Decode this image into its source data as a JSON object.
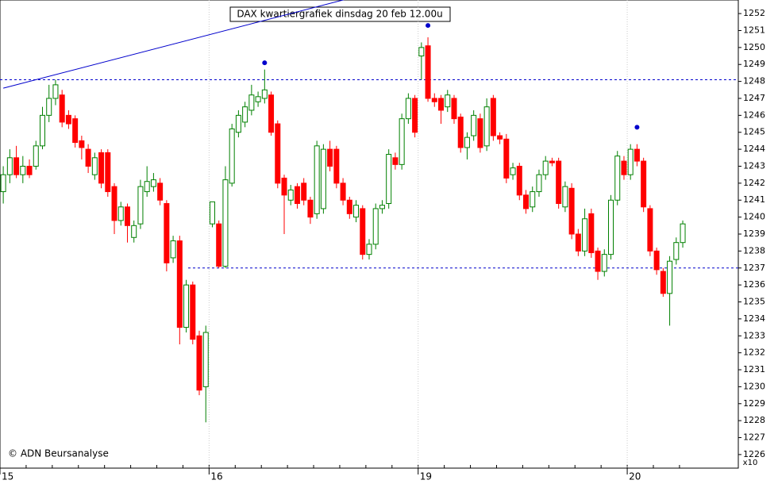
{
  "chart_data": {
    "type": "candlestick",
    "title": "DAX kwartiergrafiek dinsdag 20 feb 12.00u",
    "source": "© ADN Beursanalyse",
    "y_multiplier": "x10",
    "up_color": "#008000",
    "down_color": "#ff0000",
    "accent_color": "#0000cc",
    "ylim": [
      1225.2,
      1252.8
    ],
    "yticks": [
      1226,
      1227,
      1228,
      1229,
      1230,
      1231,
      1232,
      1233,
      1234,
      1235,
      1236,
      1237,
      1238,
      1239,
      1240,
      1241,
      1242,
      1243,
      1244,
      1245,
      1246,
      1247,
      1248,
      1249,
      1250,
      1251,
      1252
    ],
    "categories": [
      "15",
      null,
      null,
      null,
      null,
      null,
      null,
      null,
      null,
      null,
      null,
      null,
      null,
      null,
      null,
      null,
      null,
      null,
      null,
      null,
      null,
      null,
      null,
      null,
      null,
      null,
      null,
      null,
      null,
      null,
      null,
      null,
      "16",
      null,
      null,
      null,
      null,
      null,
      null,
      null,
      null,
      null,
      null,
      null,
      null,
      null,
      null,
      null,
      null,
      null,
      null,
      null,
      null,
      null,
      null,
      null,
      null,
      null,
      null,
      null,
      null,
      null,
      null,
      null,
      "19",
      null,
      null,
      null,
      null,
      null,
      null,
      null,
      null,
      null,
      null,
      null,
      null,
      null,
      null,
      null,
      null,
      null,
      null,
      null,
      null,
      null,
      null,
      null,
      null,
      null,
      null,
      null,
      null,
      null,
      null,
      null,
      "20",
      null,
      null,
      null,
      null,
      null,
      null,
      null,
      null
    ],
    "candles": [
      [
        1241.5,
        1243,
        1240.8,
        1242.5
      ],
      [
        1242.5,
        1244,
        1242,
        1243.5
      ],
      [
        1243.5,
        1244.2,
        1242.3,
        1242.5
      ],
      [
        1242.5,
        1243.6,
        1242,
        1243
      ],
      [
        1243,
        1243.4,
        1242.3,
        1242.5
      ],
      [
        1243,
        1244.5,
        1242.8,
        1244.2
      ],
      [
        1244.2,
        1246.5,
        1244,
        1246
      ],
      [
        1246,
        1247.8,
        1245.6,
        1247
      ],
      [
        1247,
        1248.1,
        1246.6,
        1247.8
      ],
      [
        1247.2,
        1247.5,
        1245.3,
        1245.6
      ],
      [
        1246,
        1246.3,
        1245.2,
        1245.5
      ],
      [
        1245.8,
        1246,
        1244.1,
        1244.4
      ],
      [
        1244.5,
        1244.8,
        1243.4,
        1244.1
      ],
      [
        1244,
        1244.3,
        1242.6,
        1243
      ],
      [
        1242.5,
        1243.8,
        1242.2,
        1243.5
      ],
      [
        1243.8,
        1244,
        1241.7,
        1242
      ],
      [
        1243.8,
        1244,
        1241.2,
        1241.5
      ],
      [
        1241.8,
        1242,
        1239,
        1239.8
      ],
      [
        1239.8,
        1240.9,
        1239.5,
        1240.6
      ],
      [
        1240.6,
        1240.8,
        1238.5,
        1239.5
      ],
      [
        1238.8,
        1239.8,
        1238.5,
        1239.5
      ],
      [
        1239.6,
        1242.2,
        1239.3,
        1241.8
      ],
      [
        1241.5,
        1243,
        1241.2,
        1242.1
      ],
      [
        1241.8,
        1242.6,
        1241.5,
        1242.2
      ],
      [
        1242,
        1242.3,
        1240.7,
        1241
      ],
      [
        1240.8,
        1241,
        1236.8,
        1237.3
      ],
      [
        1237.6,
        1238.9,
        1237.3,
        1238.6
      ],
      [
        1238.6,
        1238.9,
        1232.5,
        1233.5
      ],
      [
        1233.5,
        1236.3,
        1233.2,
        1236
      ],
      [
        1236,
        1236.2,
        1232.5,
        1232.8
      ],
      [
        1233,
        1233.3,
        1229.5,
        1229.8
      ],
      [
        1230,
        1233.6,
        1227.9,
        1233.2
      ],
      [
        1239.6,
        1240.9,
        1239.4,
        1240.9
      ],
      [
        1239.6,
        1239.8,
        1237,
        1237.1
      ],
      [
        1237.1,
        1243,
        1237,
        1242.2
      ],
      [
        1242,
        1245.5,
        1241.8,
        1245.2
      ],
      [
        1245,
        1246.3,
        1244.7,
        1246
      ],
      [
        1245.6,
        1246.8,
        1245.3,
        1246.5
      ],
      [
        1246.3,
        1247.8,
        1246,
        1247.2
      ],
      [
        1246.8,
        1247.4,
        1246.5,
        1247.1
      ],
      [
        1247,
        1248.7,
        1246.7,
        1247.5
      ],
      [
        1247.2,
        1247.4,
        1244.8,
        1245
      ],
      [
        1245.5,
        1245.7,
        1241.7,
        1242
      ],
      [
        1242.3,
        1242.5,
        1239,
        1241.3
      ],
      [
        1241,
        1241.9,
        1240.7,
        1241.6
      ],
      [
        1241.8,
        1242,
        1240.5,
        1240.8
      ],
      [
        1242,
        1242.3,
        1240.7,
        1241
      ],
      [
        1241,
        1241.2,
        1239.6,
        1240
      ],
      [
        1240.2,
        1244.5,
        1239.9,
        1244.2
      ],
      [
        1240.5,
        1244.3,
        1240.2,
        1244
      ],
      [
        1244,
        1244.5,
        1242.7,
        1243
      ],
      [
        1244,
        1244.2,
        1241.7,
        1242
      ],
      [
        1242,
        1242.3,
        1240.7,
        1241
      ],
      [
        1241,
        1241.2,
        1239.9,
        1240.2
      ],
      [
        1240,
        1241,
        1239.7,
        1240.7
      ],
      [
        1240.5,
        1240.7,
        1237.5,
        1237.8
      ],
      [
        1237.8,
        1238.7,
        1237.5,
        1238.4
      ],
      [
        1238.4,
        1240.8,
        1238.1,
        1240.5
      ],
      [
        1240.5,
        1241,
        1240.2,
        1240.7
      ],
      [
        1240.8,
        1244,
        1240.5,
        1243.7
      ],
      [
        1243.5,
        1243.8,
        1242.8,
        1243.1
      ],
      [
        1243.1,
        1246.1,
        1242.8,
        1245.8
      ],
      [
        1245.8,
        1247.3,
        1245.5,
        1247
      ],
      [
        1247,
        1247.2,
        1244.7,
        1245
      ],
      [
        1249.5,
        1250.3,
        1248.1,
        1250
      ],
      [
        1250.1,
        1250.6,
        1246.8,
        1247
      ],
      [
        1247,
        1247.3,
        1246.5,
        1246.8
      ],
      [
        1247,
        1247.2,
        1245.5,
        1246.3
      ],
      [
        1246.5,
        1247.5,
        1246.2,
        1247.2
      ],
      [
        1247,
        1247.2,
        1245.5,
        1245.8
      ],
      [
        1245.9,
        1246.1,
        1243.8,
        1244.1
      ],
      [
        1244.1,
        1245,
        1243.4,
        1244.7
      ],
      [
        1244.8,
        1246.3,
        1244.5,
        1246
      ],
      [
        1245.8,
        1246.1,
        1243.8,
        1244.1
      ],
      [
        1244.2,
        1247,
        1243.9,
        1246.5
      ],
      [
        1247,
        1247.2,
        1244.5,
        1244.8
      ],
      [
        1244.8,
        1245,
        1244.3,
        1244.6
      ],
      [
        1244.6,
        1244.9,
        1242,
        1242.3
      ],
      [
        1242.5,
        1243.2,
        1242.2,
        1242.9
      ],
      [
        1243,
        1243.2,
        1241,
        1241.3
      ],
      [
        1241.3,
        1241.6,
        1240.2,
        1240.5
      ],
      [
        1240.6,
        1241.8,
        1240.3,
        1241.5
      ],
      [
        1241.5,
        1242.8,
        1241.2,
        1242.5
      ],
      [
        1242.5,
        1243.6,
        1242.2,
        1243.3
      ],
      [
        1243.3,
        1243.5,
        1243,
        1243.2
      ],
      [
        1243.3,
        1243.5,
        1240.5,
        1240.8
      ],
      [
        1240.6,
        1242.1,
        1240.3,
        1241.8
      ],
      [
        1241.7,
        1242,
        1238.7,
        1239
      ],
      [
        1239,
        1239.3,
        1237.7,
        1238
      ],
      [
        1238,
        1240.5,
        1237.7,
        1239.9
      ],
      [
        1240.2,
        1240.5,
        1237.6,
        1237.9
      ],
      [
        1238,
        1238.2,
        1236.3,
        1236.8
      ],
      [
        1236.8,
        1238.1,
        1236.5,
        1237.8
      ],
      [
        1237.8,
        1241.3,
        1237.5,
        1241
      ],
      [
        1241,
        1243.9,
        1240.7,
        1243.6
      ],
      [
        1243.3,
        1243.6,
        1242.2,
        1242.5
      ],
      [
        1242.5,
        1244.3,
        1242.2,
        1244
      ],
      [
        1244,
        1244.3,
        1243,
        1243.3
      ],
      [
        1243.3,
        1243.5,
        1240.3,
        1240.6
      ],
      [
        1240.5,
        1240.7,
        1237.7,
        1238
      ],
      [
        1238,
        1238.2,
        1236.6,
        1236.9
      ],
      [
        1236.8,
        1237,
        1235.3,
        1235.5
      ],
      [
        1235.5,
        1237.7,
        1233.6,
        1237.4
      ],
      [
        1237.5,
        1238.8,
        1237.2,
        1238.5
      ],
      [
        1238.5,
        1239.8,
        1238.2,
        1239.6
      ]
    ],
    "reference_lines": [
      1248.1,
      1237.0
    ],
    "trendline": [
      [
        0,
        1247.6
      ],
      [
        53,
        1252.9
      ]
    ],
    "markers": [
      [
        40,
        1249.1
      ],
      [
        65,
        1251.3
      ],
      [
        97,
        1245.3
      ]
    ]
  }
}
